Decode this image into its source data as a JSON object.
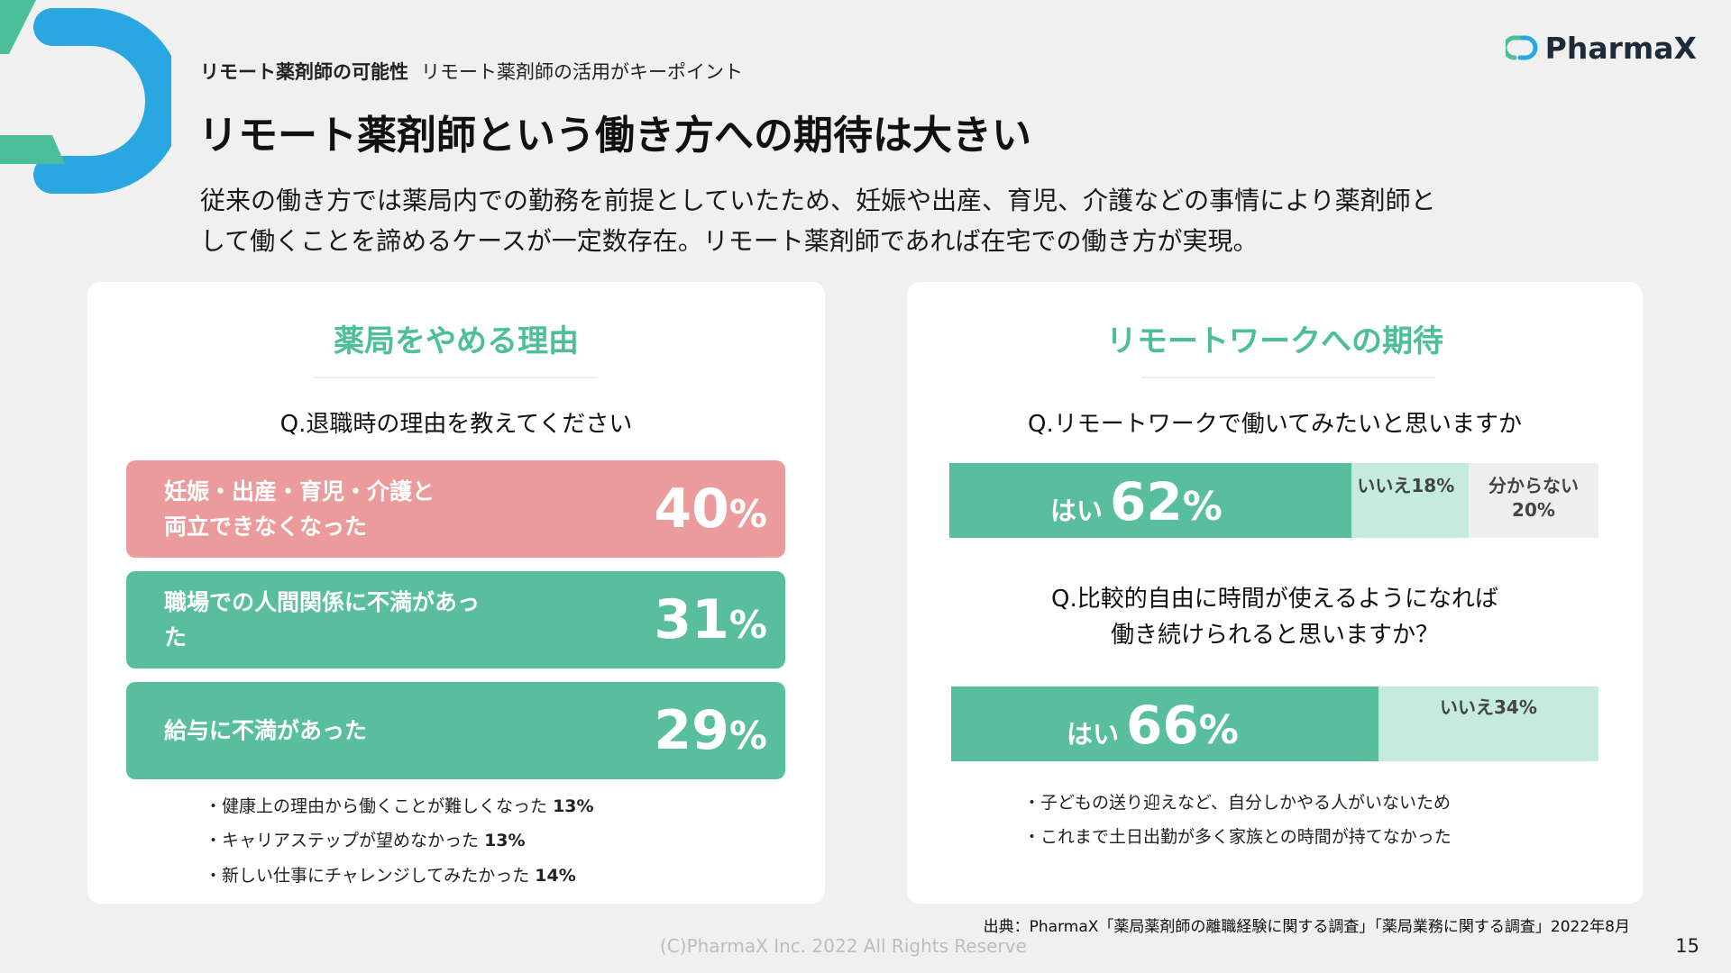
{
  "header": {
    "section": "リモート薬剤師の可能性",
    "subsection": "リモート薬剤師の活用がキーポイント",
    "title": "リモート薬剤師という働き方への期待は大きい",
    "lead_line1": "従来の働き方では薬局内での勤務を前提としていたため、妊娠や出産、育児、介護などの事情により薬剤師と",
    "lead_line2": "して働くことを諦めるケースが一定数存在。リモート薬剤師であれば在宅での働き方が実現。"
  },
  "brand": {
    "name": "PharmaX",
    "accent": "#2aa7e0",
    "green": "#4cbf9a"
  },
  "left_card": {
    "heading": "薬局をやめる理由",
    "question": "Q.退職時の理由を教えてください",
    "others": [
      {
        "text": "・健康上の理由から働くことが難しくなった",
        "value": "13%"
      },
      {
        "text": "・キャリアステップが望めなかった",
        "value": "13%"
      },
      {
        "text": "・新しい仕事にチャレンジしてみたかった",
        "value": "14%"
      }
    ]
  },
  "right_card": {
    "heading": "リモートワークへの期待",
    "q1": "Q.リモートワークで働いてみたいと思いますか",
    "q2_line1": "Q.比較的自由に時間が使えるようになれば",
    "q2_line2": "働き続けられると思いますか？",
    "comments": [
      "・子どもの送り迎えなど、自分しかやる人がいないため",
      "・これまで土日出勤が多く家族との時間が持てなかった"
    ]
  },
  "chart_data": [
    {
      "type": "bar",
      "title": "Q.退職時の理由を教えてください",
      "categories": [
        {
          "line1": "妊娠・出産・育児・介護と",
          "line2": "両立できなくなった"
        },
        {
          "line1": "職場での人間関係に不満があっ",
          "line2": "た"
        },
        {
          "line1": "給与に不満があった",
          "line2": ""
        }
      ],
      "values": [
        40,
        31,
        29
      ],
      "unit": "%",
      "colors": [
        "#eb9b9b",
        "#58be9e",
        "#58be9e"
      ]
    },
    {
      "type": "bar",
      "stacked": true,
      "title": "Q.リモートワークで働いてみたいと思いますか",
      "segments": [
        {
          "name": "はい",
          "value": 62,
          "color": "#58be9e",
          "label": "62",
          "unit": "%"
        },
        {
          "name": "いいえ",
          "value": 18,
          "color": "#c4ebdd",
          "label": "いいえ18%"
        },
        {
          "name": "分からない",
          "value": 20,
          "color": "#eeeeee",
          "label_line1": "分からない",
          "label_line2": "20%"
        }
      ]
    },
    {
      "type": "bar",
      "stacked": true,
      "title": "Q.比較的自由に時間が使えるようになれば働き続けられると思いますか？",
      "segments": [
        {
          "name": "はい",
          "value": 66,
          "color": "#58be9e",
          "label": "66",
          "unit": "%"
        },
        {
          "name": "いいえ",
          "value": 34,
          "color": "#c4ebdd",
          "label": "いいえ34%"
        }
      ]
    }
  ],
  "footer": {
    "source": "出典：PharmaX「薬局薬剤師の離職経験に関する調査」「薬局業務に関する調査」2022年8月",
    "copyright": "(C)PharmaX Inc. 2022  All Rights Reserve",
    "page": "15"
  }
}
